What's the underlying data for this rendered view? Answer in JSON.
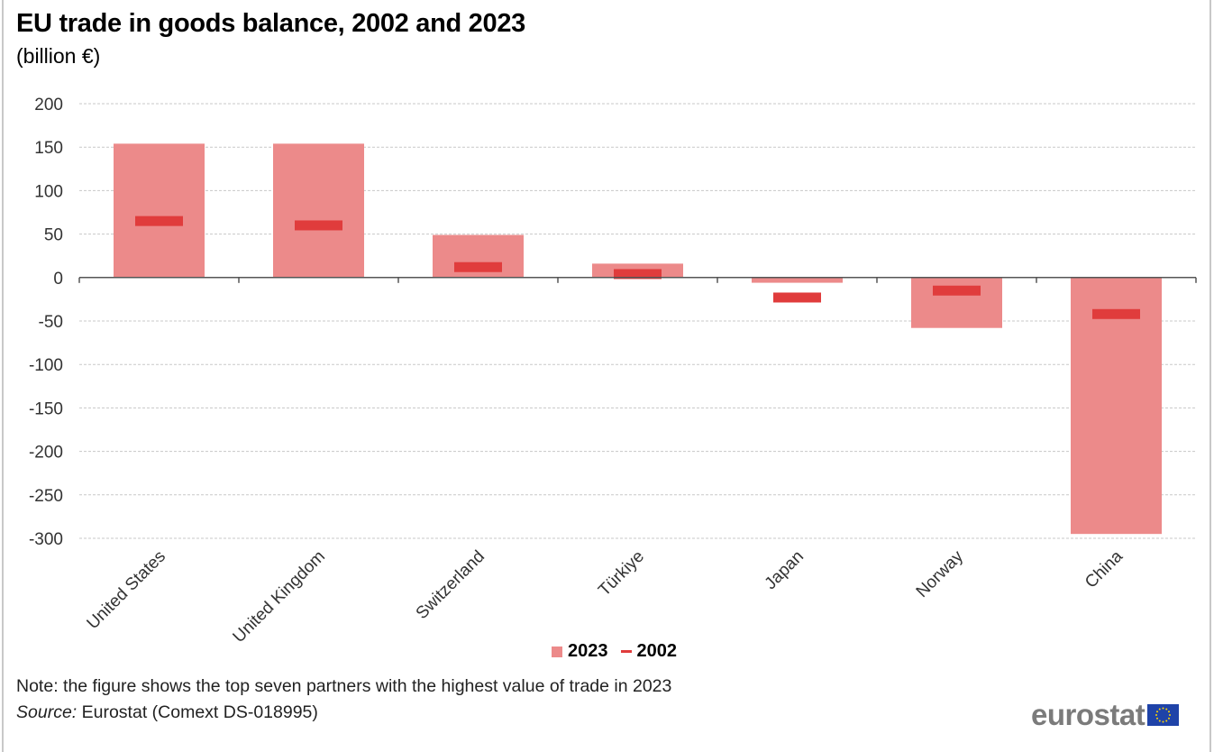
{
  "header": {
    "title": "EU trade in goods balance, 2002 and 2023",
    "subtitle": "(billion €)"
  },
  "legend": {
    "items": [
      "2023",
      "2002"
    ]
  },
  "footer": {
    "note": "Note: the figure shows the top seven partners with the highest value of trade in 2023",
    "source_label": "Source:",
    "source_text": " Eurostat (Comext DS-018995)",
    "logo_text": "eurostat"
  },
  "colors": {
    "bar_2023": "#ec8a8a",
    "marker_2002": "#e03c3c",
    "axis": "#555555",
    "grid": "#c8c8c8",
    "logo_gray": "#7b7b7b",
    "eu_blue": "#1f43a8",
    "eu_star": "#ffd500"
  },
  "chart_data": {
    "type": "bar",
    "title": "EU trade in goods balance, 2002 and 2023",
    "subtitle": "(billion €)",
    "xlabel": "",
    "ylabel": "",
    "ylim": [
      -300,
      200
    ],
    "yticks": [
      200,
      150,
      100,
      50,
      0,
      -50,
      -100,
      -150,
      -200,
      -250,
      -300
    ],
    "grid": true,
    "legend_position": "bottom-center",
    "categories": [
      "United States",
      "United Kingdom",
      "Switzerland",
      "Türkiye",
      "Japan",
      "Norway",
      "China"
    ],
    "series": [
      {
        "name": "2023",
        "kind": "bar",
        "values": [
          154,
          154,
          49,
          16,
          -6,
          -58,
          -295
        ]
      },
      {
        "name": "2002",
        "kind": "marker",
        "values": [
          65,
          60,
          12,
          4,
          -23,
          -15,
          -42
        ]
      }
    ]
  }
}
